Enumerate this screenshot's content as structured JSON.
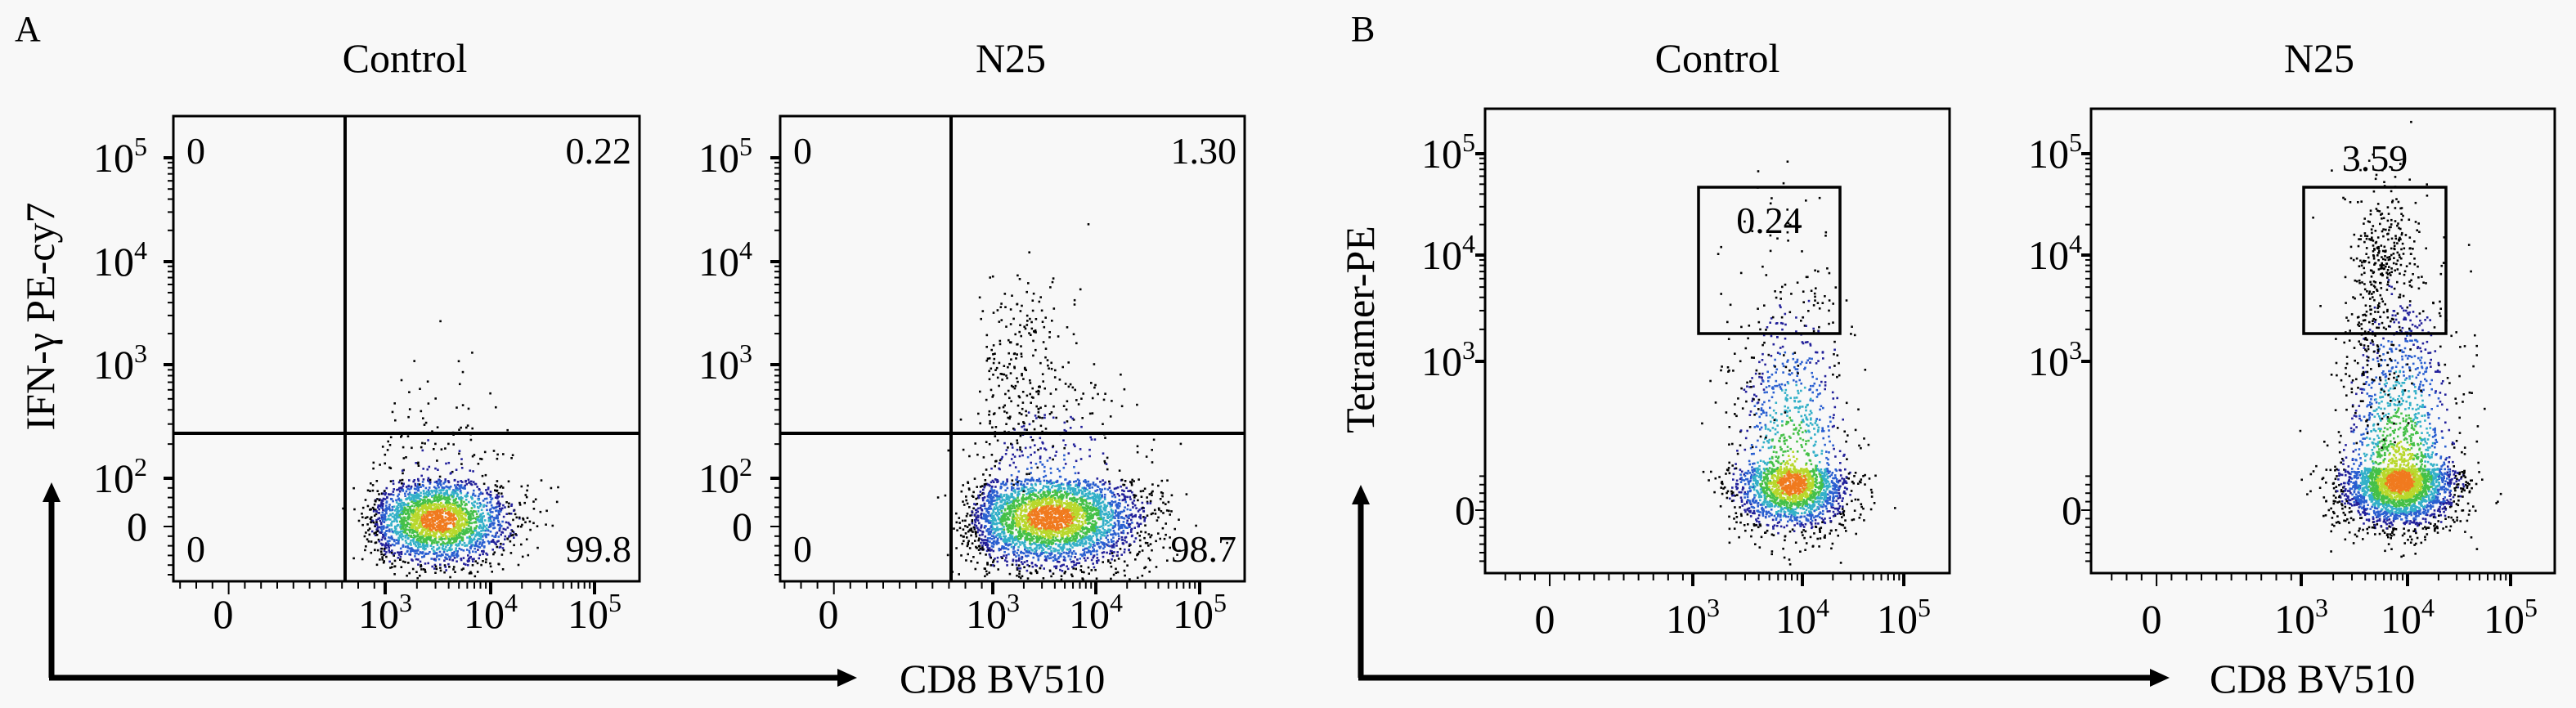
{
  "figure": {
    "panel_a": {
      "letter": "A",
      "x_axis_title": "CD8 BV510",
      "y_axis_title": "IFN-γ PE-cy7"
    },
    "panel_b": {
      "letter": "B",
      "x_axis_title": "CD8 BV510",
      "y_axis_title": "Tetramer-PE"
    }
  },
  "chart_data": [
    {
      "id": "a-control",
      "panel": "A",
      "type": "scatter",
      "title": "Control",
      "xlabel": "CD8 BV510",
      "ylabel": "IFN-γ PE-cy7",
      "scale": "biexponential",
      "x_ticks": [
        {
          "base": "0",
          "exp": "",
          "t": 0
        },
        {
          "base": "10",
          "exp": "3",
          "t": 3
        },
        {
          "base": "10",
          "exp": "4",
          "t": 4
        },
        {
          "base": "10",
          "exp": "5",
          "t": 5
        }
      ],
      "y_ticks": [
        {
          "base": "0",
          "exp": "",
          "t": 0
        },
        {
          "base": "10",
          "exp": "2",
          "t": 2
        },
        {
          "base": "10",
          "exp": "3",
          "t": 3
        },
        {
          "base": "10",
          "exp": "4",
          "t": 4
        },
        {
          "base": "10",
          "exp": "5",
          "t": 5
        }
      ],
      "gate": "quadrant",
      "quadrant_values": {
        "upper_left": "0",
        "upper_right": "0.22",
        "lower_left": "0",
        "lower_right": "99.8"
      },
      "populations": [
        {
          "n": 2500,
          "cx": 3.5,
          "cy": 0.3,
          "sx": 0.35,
          "sy": 0.95,
          "density_colored": true
        },
        {
          "n": 25,
          "cx": 3.35,
          "cy": 2.4,
          "sx": 0.2,
          "sy": 0.45,
          "density_colored": false
        }
      ]
    },
    {
      "id": "a-n25",
      "panel": "A",
      "type": "scatter",
      "title": "N25",
      "xlabel": "CD8 BV510",
      "ylabel": "IFN-γ PE-cy7",
      "scale": "biexponential",
      "x_ticks": [
        {
          "base": "0",
          "exp": "",
          "t": 0
        },
        {
          "base": "10",
          "exp": "3",
          "t": 3
        },
        {
          "base": "10",
          "exp": "4",
          "t": 4
        },
        {
          "base": "10",
          "exp": "5",
          "t": 5
        }
      ],
      "y_ticks": [
        {
          "base": "0",
          "exp": "",
          "t": 0
        },
        {
          "base": "10",
          "exp": "2",
          "t": 2
        },
        {
          "base": "10",
          "exp": "3",
          "t": 3
        },
        {
          "base": "10",
          "exp": "4",
          "t": 4
        },
        {
          "base": "10",
          "exp": "5",
          "t": 5
        }
      ],
      "gate": "quadrant",
      "quadrant_values": {
        "upper_left": "0",
        "upper_right": "1.30",
        "lower_left": "0",
        "lower_right": "98.7"
      },
      "populations": [
        {
          "n": 3600,
          "cx": 3.55,
          "cy": 0.4,
          "sx": 0.45,
          "sy": 1.05,
          "density_colored": true
        },
        {
          "n": 200,
          "cx": 3.25,
          "cy": 3.0,
          "sx": 0.2,
          "sy": 0.45,
          "density_colored": false
        }
      ]
    },
    {
      "id": "b-control",
      "panel": "B",
      "type": "scatter",
      "title": "Control",
      "xlabel": "CD8 BV510",
      "ylabel": "Tetramer-PE",
      "scale": "biexponential",
      "x_ticks": [
        {
          "base": "0",
          "exp": "",
          "t": 0
        },
        {
          "base": "10",
          "exp": "3",
          "t": 3
        },
        {
          "base": "10",
          "exp": "4",
          "t": 4
        },
        {
          "base": "10",
          "exp": "5",
          "t": 5
        }
      ],
      "y_ticks": [
        {
          "base": "0",
          "exp": "",
          "t": 0
        },
        {
          "base": "10",
          "exp": "3",
          "t": 3
        },
        {
          "base": "10",
          "exp": "4",
          "t": 4
        },
        {
          "base": "10",
          "exp": "5",
          "t": 5
        }
      ],
      "gate": "rectangle",
      "gate_value": "0.24",
      "populations": [
        {
          "n": 2300,
          "cx": 3.9,
          "cy": 1.3,
          "sx": 0.27,
          "sy": 1.1,
          "density_colored": true
        },
        {
          "n": 45,
          "cx": 3.6,
          "cy": 3.1,
          "sx": 0.2,
          "sy": 0.5,
          "density_colored": false
        }
      ]
    },
    {
      "id": "b-n25",
      "panel": "B",
      "type": "scatter",
      "title": "N25",
      "xlabel": "CD8 BV510",
      "ylabel": "Tetramer-PE",
      "scale": "biexponential",
      "x_ticks": [
        {
          "base": "0",
          "exp": "",
          "t": 0
        },
        {
          "base": "10",
          "exp": "3",
          "t": 3
        },
        {
          "base": "10",
          "exp": "4",
          "t": 4
        },
        {
          "base": "10",
          "exp": "5",
          "t": 5
        }
      ],
      "y_ticks": [
        {
          "base": "0",
          "exp": "",
          "t": 0
        },
        {
          "base": "10",
          "exp": "3",
          "t": 3
        },
        {
          "base": "10",
          "exp": "4",
          "t": 4
        },
        {
          "base": "10",
          "exp": "5",
          "t": 5
        }
      ],
      "gate": "rectangle",
      "gate_value": "3.59",
      "populations": [
        {
          "n": 3300,
          "cx": 3.92,
          "cy": 1.4,
          "sx": 0.28,
          "sy": 1.1,
          "density_colored": true
        },
        {
          "n": 230,
          "cx": 3.75,
          "cy": 4.05,
          "sx": 0.15,
          "sy": 0.3,
          "density_colored": false
        },
        {
          "n": 130,
          "cx": 3.7,
          "cy": 3.0,
          "sx": 0.15,
          "sy": 0.45,
          "density_colored": false
        }
      ]
    }
  ],
  "colors": {
    "background": "#f8f8f8",
    "density": [
      "#000000",
      "#22209a",
      "#2a5fd0",
      "#33b0c8",
      "#45c048",
      "#b8d82c",
      "#f07a1e"
    ]
  }
}
